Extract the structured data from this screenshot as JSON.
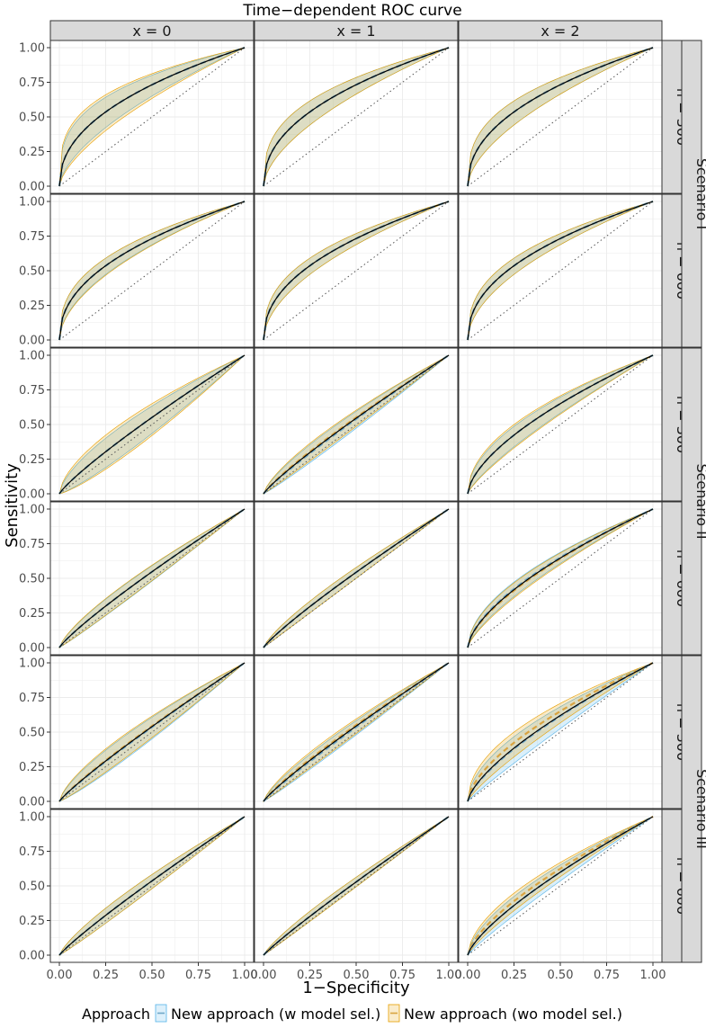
{
  "chart_data": {
    "type": "line",
    "title": "Time−dependent ROC curve",
    "xlabel": "1−Specificity",
    "ylabel": "Sensitivity",
    "xlim": [
      0,
      1
    ],
    "ylim": [
      0,
      1
    ],
    "x_ticks": [
      "0.00",
      "0.25",
      "0.50",
      "0.75",
      "1.00"
    ],
    "y_ticks": [
      "0.00",
      "0.25",
      "0.50",
      "0.75",
      "1.00"
    ],
    "grid": true,
    "legend": {
      "position": "bottom",
      "title": "Approach",
      "entries": [
        {
          "label": "New approach (w model sel.)",
          "color": "#56B4E9"
        },
        {
          "label": "New approach (wo model sel.)",
          "color": "#E69F00"
        }
      ]
    },
    "reference_line": "diagonal (dotted)",
    "columns": [
      "x =  0",
      "x =  1",
      "x =  2"
    ],
    "rows": [
      "n = 300",
      "n = 600",
      "n = 300",
      "n = 600",
      "n = 300",
      "n = 600"
    ],
    "groups": [
      {
        "label": "Scenario I",
        "rows": [
          0,
          1
        ]
      },
      {
        "label": "Scenario II",
        "rows": [
          2,
          3
        ]
      },
      {
        "label": "Scenario III",
        "rows": [
          4,
          5
        ]
      }
    ],
    "panels": [
      {
        "row": 0,
        "col": 0,
        "w": {
          "k": 0.45,
          "lo": 0.32,
          "hi": 0.62
        },
        "wo": {
          "k": 0.45,
          "lo": 0.3,
          "hi": 0.66
        }
      },
      {
        "row": 0,
        "col": 1,
        "w": {
          "k": 0.45,
          "lo": 0.35,
          "hi": 0.59
        },
        "wo": {
          "k": 0.45,
          "lo": 0.35,
          "hi": 0.59
        }
      },
      {
        "row": 0,
        "col": 2,
        "w": {
          "k": 0.45,
          "lo": 0.35,
          "hi": 0.59
        },
        "wo": {
          "k": 0.45,
          "lo": 0.35,
          "hi": 0.59
        }
      },
      {
        "row": 1,
        "col": 0,
        "w": {
          "k": 0.45,
          "lo": 0.38,
          "hi": 0.54
        },
        "wo": {
          "k": 0.45,
          "lo": 0.38,
          "hi": 0.55
        }
      },
      {
        "row": 1,
        "col": 1,
        "w": {
          "k": 0.45,
          "lo": 0.38,
          "hi": 0.54
        },
        "wo": {
          "k": 0.45,
          "lo": 0.38,
          "hi": 0.54
        }
      },
      {
        "row": 1,
        "col": 2,
        "w": {
          "k": 0.45,
          "lo": 0.38,
          "hi": 0.54
        },
        "wo": {
          "k": 0.45,
          "lo": 0.38,
          "hi": 0.54
        }
      },
      {
        "row": 2,
        "col": 0,
        "w": {
          "k": 0.86,
          "lo": 0.66,
          "hi": 1.2
        },
        "wo": {
          "k": 0.86,
          "lo": 0.62,
          "hi": 1.25
        }
      },
      {
        "row": 2,
        "col": 1,
        "w": {
          "k": 0.89,
          "lo": 0.75,
          "hi": 1.08
        },
        "wo": {
          "k": 0.86,
          "lo": 0.73,
          "hi": 1.04
        }
      },
      {
        "row": 2,
        "col": 2,
        "w": {
          "k": 0.62,
          "lo": 0.52,
          "hi": 0.78
        },
        "wo": {
          "k": 0.62,
          "lo": 0.5,
          "hi": 0.8
        }
      },
      {
        "row": 3,
        "col": 0,
        "w": {
          "k": 0.87,
          "lo": 0.76,
          "hi": 1.06
        },
        "wo": {
          "k": 0.87,
          "lo": 0.75,
          "hi": 1.05
        }
      },
      {
        "row": 3,
        "col": 1,
        "w": {
          "k": 0.88,
          "lo": 0.79,
          "hi": 1.0
        },
        "wo": {
          "k": 0.88,
          "lo": 0.79,
          "hi": 1.0
        }
      },
      {
        "row": 3,
        "col": 2,
        "w": {
          "k": 0.62,
          "lo": 0.54,
          "hi": 0.72
        },
        "wo": {
          "k": 0.64,
          "lo": 0.55,
          "hi": 0.74
        }
      },
      {
        "row": 4,
        "col": 0,
        "w": {
          "k": 0.9,
          "lo": 0.72,
          "hi": 1.15
        },
        "wo": {
          "k": 0.88,
          "lo": 0.7,
          "hi": 1.12
        }
      },
      {
        "row": 4,
        "col": 1,
        "w": {
          "k": 0.9,
          "lo": 0.78,
          "hi": 1.06
        },
        "wo": {
          "k": 0.86,
          "lo": 0.75,
          "hi": 1.03
        }
      },
      {
        "row": 4,
        "col": 2,
        "w": {
          "k": 0.7,
          "lo": 0.55,
          "hi": 0.93
        },
        "wo": {
          "k": 0.62,
          "lo": 0.5,
          "hi": 0.82
        }
      },
      {
        "row": 5,
        "col": 0,
        "w": {
          "k": 0.9,
          "lo": 0.78,
          "hi": 1.06
        },
        "wo": {
          "k": 0.9,
          "lo": 0.78,
          "hi": 1.06
        }
      },
      {
        "row": 5,
        "col": 1,
        "w": {
          "k": 0.92,
          "lo": 0.83,
          "hi": 1.02
        },
        "wo": {
          "k": 0.92,
          "lo": 0.83,
          "hi": 1.02
        }
      },
      {
        "row": 5,
        "col": 2,
        "w": {
          "k": 0.74,
          "lo": 0.62,
          "hi": 0.9
        },
        "wo": {
          "k": 0.68,
          "lo": 0.58,
          "hi": 0.82
        }
      }
    ]
  },
  "colors": {
    "w_fill": "#56B4E9",
    "wo_fill": "#E69F00",
    "strip_bg": "#D9D9D9",
    "grid": "#EBEBEB",
    "true_curve": "#000000",
    "w_dash": "#6FA8C8",
    "wo_dash": "#D9A441"
  }
}
